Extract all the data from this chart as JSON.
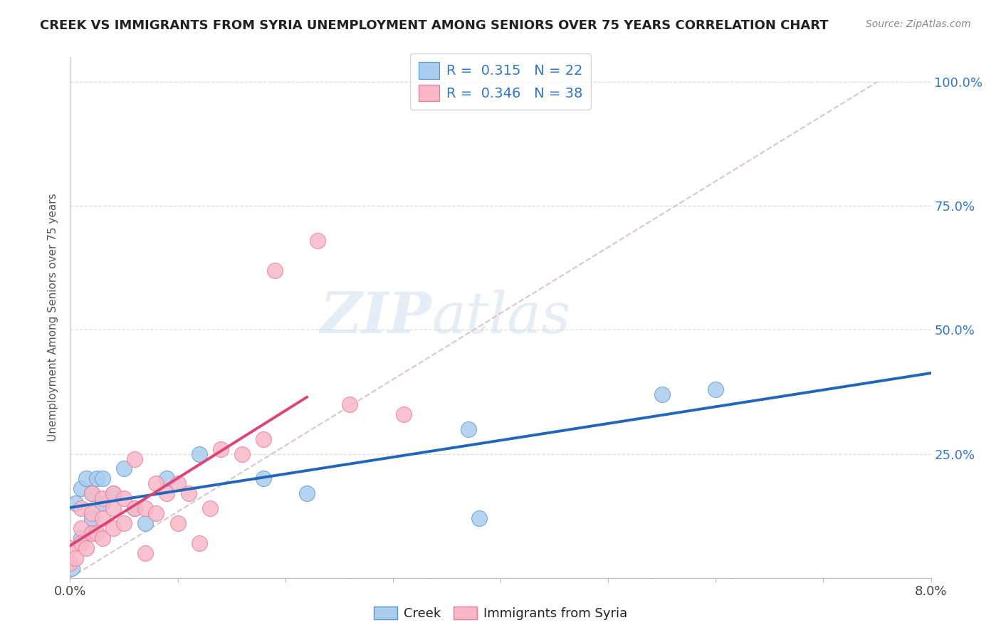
{
  "title": "CREEK VS IMMIGRANTS FROM SYRIA UNEMPLOYMENT AMONG SENIORS OVER 75 YEARS CORRELATION CHART",
  "source": "Source: ZipAtlas.com",
  "ylabel": "Unemployment Among Seniors over 75 years",
  "xlim": [
    0.0,
    0.08
  ],
  "ylim": [
    0.0,
    1.05
  ],
  "xticks": [
    0.0,
    0.01,
    0.02,
    0.03,
    0.04,
    0.05,
    0.06,
    0.07,
    0.08
  ],
  "ytick_positions": [
    0.0,
    0.25,
    0.5,
    0.75,
    1.0
  ],
  "yticklabels": [
    "",
    "25.0%",
    "50.0%",
    "75.0%",
    "100.0%"
  ],
  "creek_R": "0.315",
  "creek_N": "22",
  "syria_R": "0.346",
  "syria_N": "38",
  "creek_color": "#aaccee",
  "creek_edge_color": "#5599cc",
  "creek_line_color": "#2266bb",
  "syria_color": "#f8b8c8",
  "syria_edge_color": "#ee7799",
  "syria_line_color": "#dd4477",
  "dash_line_color": "#ddbbcc",
  "legend_text_color": "#3377cc",
  "creek_x": [
    0.0002,
    0.0005,
    0.001,
    0.001,
    0.0015,
    0.002,
    0.002,
    0.0025,
    0.003,
    0.003,
    0.004,
    0.005,
    0.006,
    0.007,
    0.009,
    0.012,
    0.018,
    0.022,
    0.037,
    0.038,
    0.055,
    0.06
  ],
  "creek_y": [
    0.02,
    0.15,
    0.08,
    0.18,
    0.2,
    0.12,
    0.17,
    0.2,
    0.15,
    0.2,
    0.17,
    0.22,
    0.14,
    0.11,
    0.2,
    0.25,
    0.2,
    0.17,
    0.3,
    0.12,
    0.37,
    0.38
  ],
  "syria_x": [
    0.0,
    0.0,
    0.0005,
    0.001,
    0.001,
    0.001,
    0.0015,
    0.002,
    0.002,
    0.002,
    0.0025,
    0.003,
    0.003,
    0.003,
    0.004,
    0.004,
    0.004,
    0.005,
    0.005,
    0.006,
    0.006,
    0.007,
    0.007,
    0.008,
    0.008,
    0.009,
    0.01,
    0.01,
    0.011,
    0.012,
    0.013,
    0.014,
    0.016,
    0.018,
    0.019,
    0.023,
    0.026,
    0.031
  ],
  "syria_y": [
    0.03,
    0.06,
    0.04,
    0.07,
    0.1,
    0.14,
    0.06,
    0.09,
    0.13,
    0.17,
    0.09,
    0.08,
    0.12,
    0.16,
    0.1,
    0.14,
    0.17,
    0.11,
    0.16,
    0.14,
    0.24,
    0.05,
    0.14,
    0.13,
    0.19,
    0.17,
    0.11,
    0.19,
    0.17,
    0.07,
    0.14,
    0.26,
    0.25,
    0.28,
    0.62,
    0.68,
    0.35,
    0.33
  ],
  "watermark_zip": "ZIP",
  "watermark_atlas": "atlas",
  "background_color": "#ffffff",
  "grid_color": "#dddddd"
}
